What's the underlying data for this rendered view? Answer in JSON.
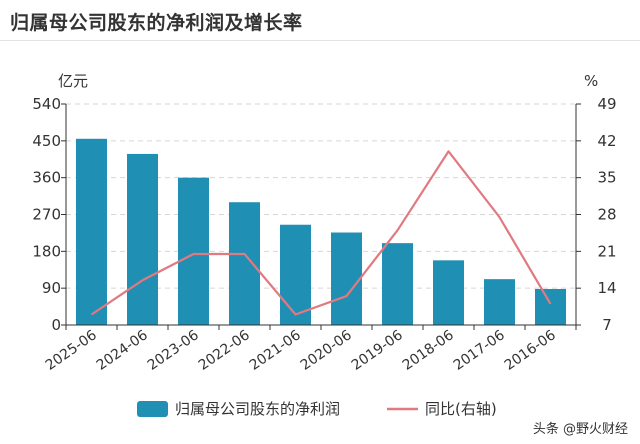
{
  "chart_data": {
    "type": "bar+line",
    "title": "归属母公司股东的净利润及增长率",
    "categories": [
      "2025-06",
      "2024-06",
      "2023-06",
      "2022-06",
      "2021-06",
      "2020-06",
      "2019-06",
      "2018-06",
      "2017-06",
      "2016-06"
    ],
    "series": [
      {
        "name": "归属母公司股东的净利润",
        "type": "bar",
        "axis": "left",
        "values": [
          455,
          418,
          360,
          300,
          245,
          226,
          200,
          158,
          112,
          88
        ]
      },
      {
        "name": "同比(右轴)",
        "type": "line",
        "axis": "right",
        "values": [
          9,
          15.5,
          20.5,
          20.5,
          9,
          12.5,
          25,
          40,
          27.5,
          11
        ]
      }
    ],
    "left_axis": {
      "unit": "亿元",
      "ylim": [
        0,
        540
      ],
      "ticks": [
        0,
        90,
        180,
        270,
        360,
        450,
        540
      ]
    },
    "right_axis": {
      "unit": "%",
      "ylim": [
        7,
        49
      ],
      "ticks": [
        7,
        14,
        21,
        28,
        35,
        42,
        49
      ]
    },
    "legend_position": "bottom-center",
    "colors": {
      "bar": "#1f8fb3",
      "line": "#e07a80",
      "grid": "#d6d6d6",
      "axis": "#333333",
      "text": "#333333"
    }
  },
  "watermark": "头条 @野火财经"
}
